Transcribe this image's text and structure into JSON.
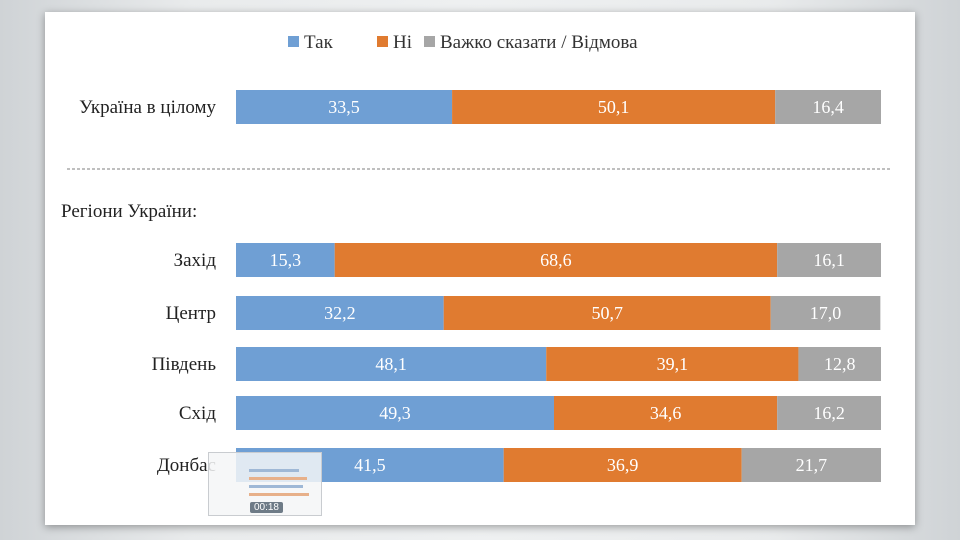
{
  "chart_data": {
    "type": "bar",
    "orientation": "horizontal",
    "stacked": true,
    "legend_position": "top",
    "grid": false,
    "xlim": [
      0,
      100
    ],
    "section_label": "Регіони України:",
    "categories": [
      "Україна в цілому",
      "Захід",
      "Центр",
      "Південь",
      "Схід",
      "Донбас"
    ],
    "series": [
      {
        "name": "Так",
        "color": "#6f9fd4",
        "values": [
          33.5,
          15.3,
          32.2,
          48.1,
          49.3,
          41.5
        ],
        "labels": [
          "33,5",
          "15,3",
          "32,2",
          "48,1",
          "49,3",
          "41,5"
        ]
      },
      {
        "name": "Ні",
        "color": "#e07b30",
        "values": [
          50.1,
          68.6,
          50.7,
          39.1,
          34.6,
          36.9
        ],
        "labels": [
          "50,1",
          "68,6",
          "50,7",
          "39,1",
          "34,6",
          "36,9"
        ]
      },
      {
        "name": "Важко сказати / Відмова",
        "color": "#a6a6a6",
        "values": [
          16.4,
          16.1,
          17.0,
          12.8,
          16.2,
          21.7
        ],
        "labels": [
          "16,4",
          "16,1",
          "17,0",
          "12,8",
          "16,2",
          "21,7"
        ]
      }
    ]
  },
  "thumbnail": {
    "time": "00:18"
  }
}
